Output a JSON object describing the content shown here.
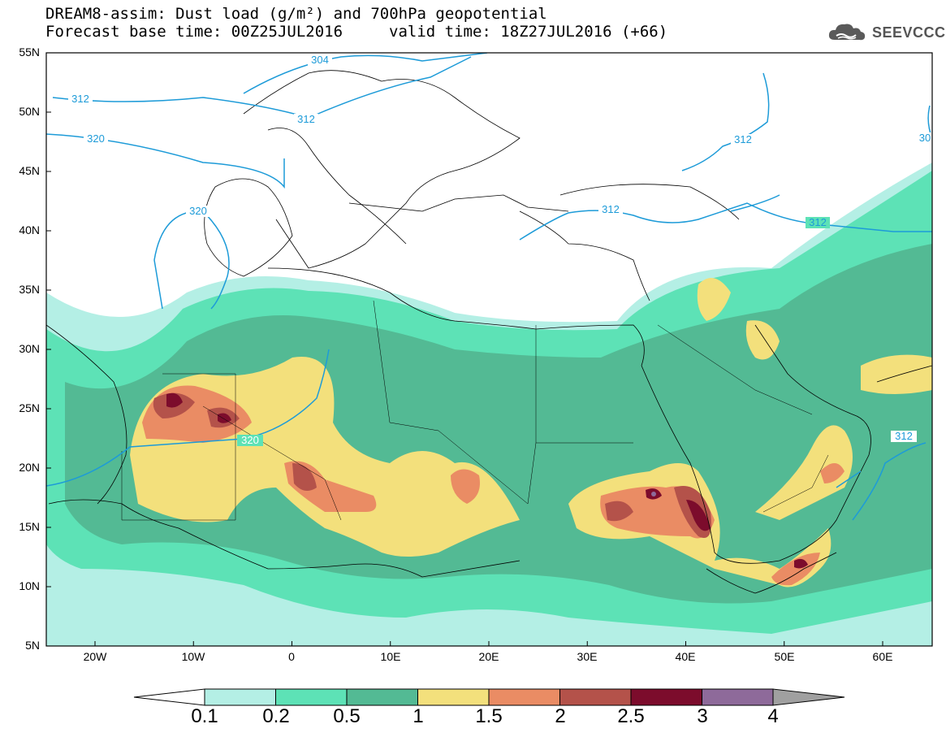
{
  "header": {
    "line1": "DREAM8-assim: Dust load (g/m²) and 700hPa geopotential",
    "line2": "Forecast base time: 00Z25JUL2016",
    "valid": "valid time: 18Z27JUL2016 (+66)"
  },
  "logo": {
    "text": "SEEVCCC",
    "icon": "cloud-icon"
  },
  "axes": {
    "lat_labels": [
      "55N",
      "50N",
      "45N",
      "40N",
      "35N",
      "30N",
      "25N",
      "20N",
      "15N",
      "10N",
      "5N"
    ],
    "lon_labels": [
      "20W",
      "10W",
      "0",
      "10E",
      "20E",
      "30E",
      "40E",
      "50E",
      "60E"
    ]
  },
  "contours": {
    "labels": [
      "304",
      "312",
      "312",
      "320",
      "320",
      "320",
      "312",
      "312",
      "312",
      "312",
      "30"
    ]
  },
  "colorbar": {
    "labels": [
      "0.1",
      "0.2",
      "0.5",
      "1",
      "1.5",
      "2",
      "2.5",
      "3",
      "4"
    ],
    "colors": [
      "#ffffff",
      "#b4efe5",
      "#5de2b6",
      "#53ba94",
      "#f3e07c",
      "#ea8c64",
      "#b4524a",
      "#7c0c2c",
      "#8e6a9a",
      "#a0a0a0"
    ]
  },
  "colors": {
    "contour": "#1d9bd8",
    "coast": "#000000"
  }
}
